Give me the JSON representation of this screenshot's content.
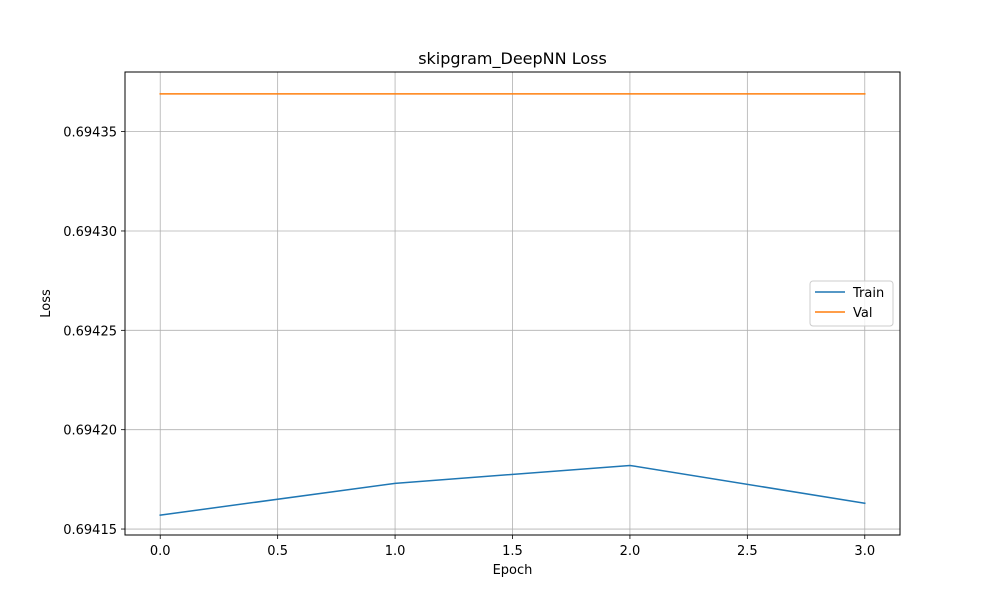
{
  "chart_data": {
    "type": "line",
    "title": "skipgram_DeepNN Loss",
    "xlabel": "Epoch",
    "ylabel": "Loss",
    "x": [
      0,
      1,
      2,
      3
    ],
    "series": [
      {
        "name": "Train",
        "values": [
          0.694157,
          0.694173,
          0.694182,
          0.694163
        ],
        "color": "#1f77b4"
      },
      {
        "name": "Val",
        "values": [
          0.694369,
          0.694369,
          0.694369,
          0.694369
        ],
        "color": "#ff7f0e"
      }
    ],
    "xlim": [
      -0.15,
      3.15
    ],
    "ylim": [
      0.694147,
      0.69438
    ],
    "xticks": [
      0.0,
      0.5,
      1.0,
      1.5,
      2.0,
      2.5,
      3.0
    ],
    "xtick_labels": [
      "0.0",
      "0.5",
      "1.0",
      "1.5",
      "2.0",
      "2.5",
      "3.0"
    ],
    "yticks": [
      0.69415,
      0.6942,
      0.69425,
      0.6943,
      0.69435
    ],
    "ytick_labels": [
      "0.69415",
      "0.69420",
      "0.69425",
      "0.69430",
      "0.69435"
    ],
    "grid": true,
    "legend_position": "center-right"
  }
}
